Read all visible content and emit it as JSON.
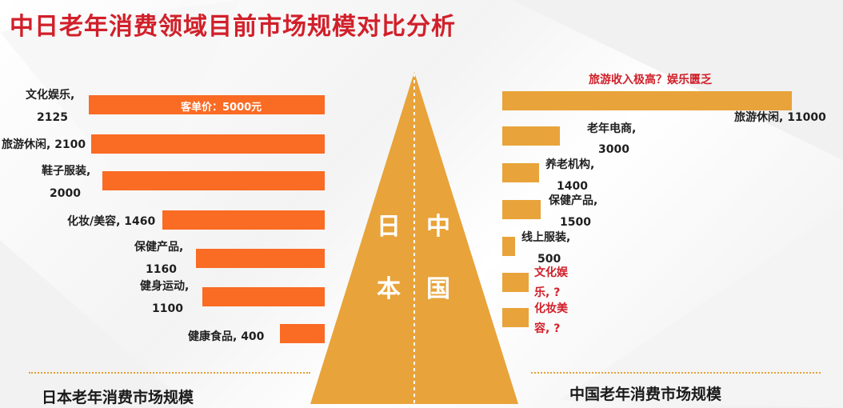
{
  "title": "中日老年消费领域目前市场规模对比分析",
  "pyramid": {
    "left_chars": [
      "日",
      "本"
    ],
    "right_chars": [
      "中",
      "国"
    ],
    "color": "#e8a33a"
  },
  "japan": {
    "section_title": "日本老年消费市场规模",
    "bar_color": "#fa6b23",
    "inbar_note": "客单价：5000元",
    "labels": [
      [
        "文化娱乐,",
        "2125"
      ],
      [
        "旅游休闲, 2100"
      ],
      [
        "鞋子服装,",
        "2000"
      ],
      [
        "化妆/美容, 1460"
      ],
      [
        "保健产品,",
        "1160"
      ],
      [
        "健身运动,",
        "1100"
      ],
      [
        "健康食品, 400"
      ]
    ]
  },
  "china": {
    "section_title": "中国老年消费市场规模",
    "bar_color": "#e8a33a",
    "headline": "旅游收入极高？娱乐匮乏",
    "labels": [
      [
        "旅游休闲, 11000"
      ],
      [
        "老年电商,",
        "3000"
      ],
      [
        "养老机构,",
        "1400"
      ],
      [
        "保健产品,",
        "1500"
      ],
      [
        "线上服装,",
        "500"
      ],
      [
        "文化娱",
        "乐, ?"
      ],
      [
        "化妆美",
        "容, ?"
      ]
    ]
  },
  "chart_data": [
    {
      "type": "bar",
      "orientation": "horizontal",
      "categories": [
        "文化娱乐",
        "旅游休闲",
        "鞋子服装",
        "化妆/美容",
        "保健产品",
        "健身运动",
        "健康食品"
      ],
      "values": [
        2125,
        2100,
        2000,
        1460,
        1160,
        1100,
        400
      ],
      "annotations": [
        "客单价：5000元"
      ]
    },
    {
      "type": "bar",
      "orientation": "horizontal",
      "categories": [
        "旅游休闲",
        "老年电商",
        "养老机构",
        "保健产品",
        "线上服装",
        "文化娱乐",
        "化妆美容"
      ],
      "values": [
        11000,
        3000,
        1400,
        1500,
        500,
        null,
        null
      ],
      "annotations": [
        "旅游收入极高？娱乐匮乏"
      ]
    }
  ]
}
